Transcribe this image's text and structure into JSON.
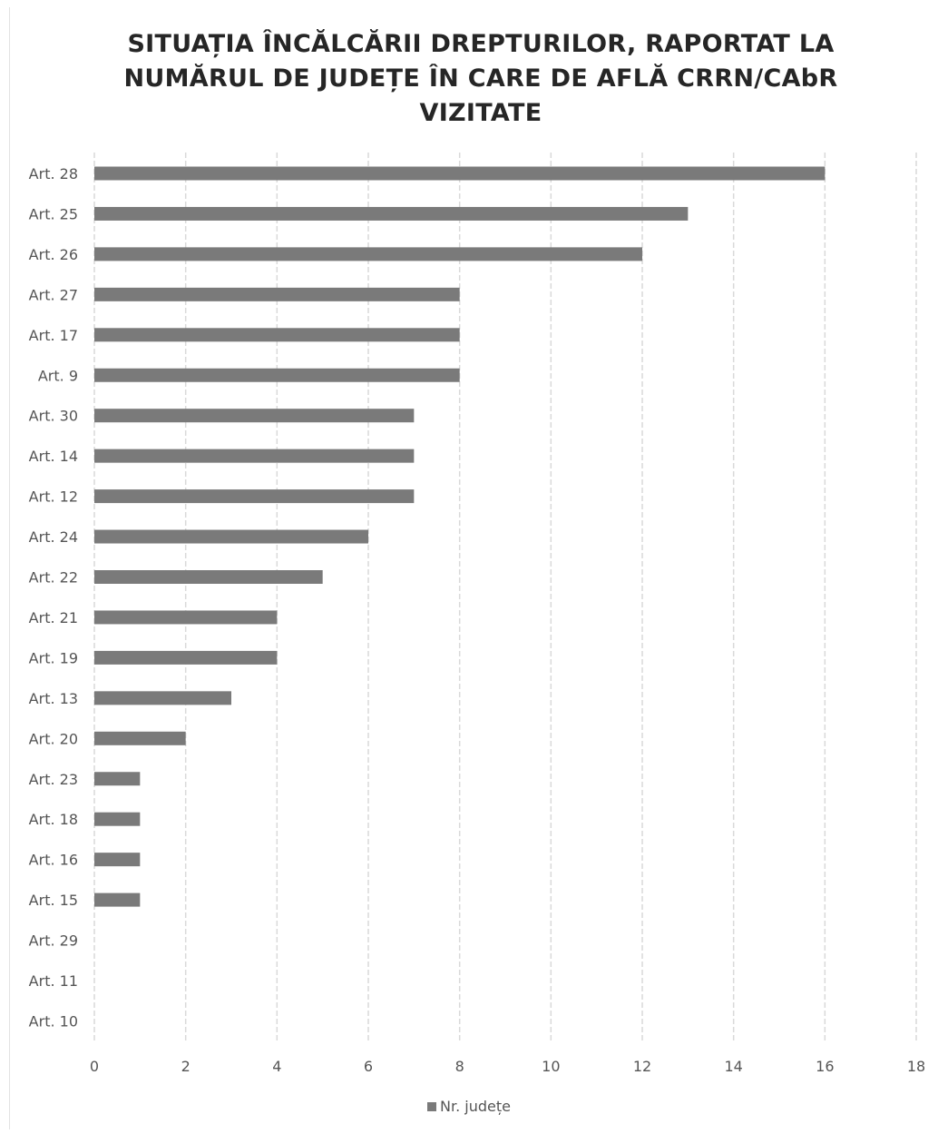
{
  "colors": {
    "bar": "#7a7a7a",
    "grid": "#d9d9d9",
    "text": "#555555",
    "title": "#262626"
  },
  "chart_data": {
    "type": "bar",
    "orientation": "horizontal",
    "title": "SITUAȚIA ÎNCĂLCĂRII DREPTURILOR, RAPORTAT LA NUMĂRUL DE JUDEȚE ÎN CARE DE AFLĂ CRRN/CAbR VIZITATE",
    "categories": [
      "Art. 28",
      "Art. 25",
      "Art. 26",
      "Art. 27",
      "Art. 17",
      "Art. 9",
      "Art. 30",
      "Art. 14",
      "Art. 12",
      "Art. 24",
      "Art. 22",
      "Art. 21",
      "Art. 19",
      "Art. 13",
      "Art. 20",
      "Art. 23",
      "Art. 18",
      "Art. 16",
      "Art. 15",
      "Art. 29",
      "Art. 11",
      "Art. 10"
    ],
    "series": [
      {
        "name": "Nr. județe",
        "values": [
          16,
          13,
          12,
          8,
          8,
          8,
          7,
          7,
          7,
          6,
          5,
          4,
          4,
          3,
          2,
          1,
          1,
          1,
          1,
          0,
          0,
          0
        ]
      }
    ],
    "xlim": [
      0,
      18
    ],
    "xticks": [
      "0",
      "2",
      "4",
      "6",
      "8",
      "10",
      "12",
      "14",
      "16",
      "18"
    ],
    "grid": true,
    "legend_position": "bottom"
  }
}
